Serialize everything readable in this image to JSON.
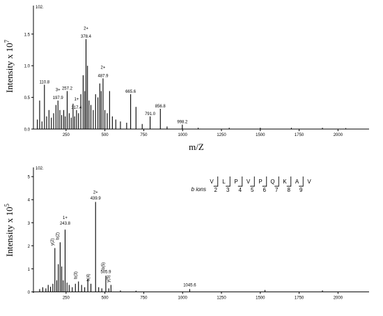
{
  "chart_data": [
    {
      "type": "bar",
      "title": "",
      "ylabel": "Intensity x 10",
      "ylabel_exp": "7",
      "xlabel": "m/Z",
      "corner_label": "102.",
      "xlim": [
        40,
        2200
      ],
      "ylim": [
        0,
        1.95
      ],
      "xticks": [
        250,
        500,
        750,
        1000,
        1250,
        1500,
        1750,
        2000
      ],
      "yticks": [
        0.0,
        0.5,
        1.0,
        1.5
      ],
      "ytick_labels": [
        "0.0",
        "0.5",
        "1.0",
        "1.5"
      ],
      "peaks": [
        {
          "mz": 65,
          "y": 0.15
        },
        {
          "mz": 80,
          "y": 0.45
        },
        {
          "mz": 95,
          "y": 0.12
        },
        {
          "mz": 110.8,
          "y": 0.7
        },
        {
          "mz": 125,
          "y": 0.2
        },
        {
          "mz": 140,
          "y": 0.3
        },
        {
          "mz": 155,
          "y": 0.18
        },
        {
          "mz": 170,
          "y": 0.25
        },
        {
          "mz": 185,
          "y": 0.38
        },
        {
          "mz": 197.9,
          "y": 0.45
        },
        {
          "mz": 210,
          "y": 0.3
        },
        {
          "mz": 222,
          "y": 0.22
        },
        {
          "mz": 235,
          "y": 0.3
        },
        {
          "mz": 245,
          "y": 0.2
        },
        {
          "mz": 257.2,
          "y": 0.6
        },
        {
          "mz": 270,
          "y": 0.25
        },
        {
          "mz": 283,
          "y": 0.18
        },
        {
          "mz": 295,
          "y": 0.4
        },
        {
          "mz": 305,
          "y": 0.2
        },
        {
          "mz": 317.4,
          "y": 0.3
        },
        {
          "mz": 330,
          "y": 0.25
        },
        {
          "mz": 345,
          "y": 0.55
        },
        {
          "mz": 360,
          "y": 0.85
        },
        {
          "mz": 370,
          "y": 0.6
        },
        {
          "mz": 378.4,
          "y": 1.42
        },
        {
          "mz": 388,
          "y": 1.0
        },
        {
          "mz": 398,
          "y": 0.45
        },
        {
          "mz": 410,
          "y": 0.38
        },
        {
          "mz": 425,
          "y": 0.3
        },
        {
          "mz": 440,
          "y": 0.55
        },
        {
          "mz": 455,
          "y": 0.5
        },
        {
          "mz": 467,
          "y": 0.72
        },
        {
          "mz": 476,
          "y": 0.6
        },
        {
          "mz": 487.9,
          "y": 0.8
        },
        {
          "mz": 500,
          "y": 0.3
        },
        {
          "mz": 515,
          "y": 0.25
        },
        {
          "mz": 530,
          "y": 0.6
        },
        {
          "mz": 548,
          "y": 0.2
        },
        {
          "mz": 570,
          "y": 0.15
        },
        {
          "mz": 600,
          "y": 0.12
        },
        {
          "mz": 640,
          "y": 0.1
        },
        {
          "mz": 665.6,
          "y": 0.55
        },
        {
          "mz": 700,
          "y": 0.35
        },
        {
          "mz": 740,
          "y": 0.08
        },
        {
          "mz": 791.0,
          "y": 0.2
        },
        {
          "mz": 856.8,
          "y": 0.32
        },
        {
          "mz": 900,
          "y": 0.04
        },
        {
          "mz": 998.2,
          "y": 0.07
        },
        {
          "mz": 1100,
          "y": 0.02
        },
        {
          "mz": 1300,
          "y": 0.02
        },
        {
          "mz": 1500,
          "y": 0.02
        },
        {
          "mz": 1700,
          "y": 0.02
        },
        {
          "mz": 1900,
          "y": 0.02
        },
        {
          "mz": 2050,
          "y": 0.015
        }
      ],
      "annotations": [
        {
          "text": "110.8",
          "mz": 110.8,
          "y": 0.7,
          "color": "#000000"
        },
        {
          "text": "3+",
          "mz": 197.9,
          "y": 0.58,
          "color": "#000000"
        },
        {
          "text": "197.9",
          "mz": 197.9,
          "y": 0.45,
          "color": "#000000"
        },
        {
          "text": "257.2",
          "mz": 257.2,
          "y": 0.6,
          "color": "#000000"
        },
        {
          "text": "1+",
          "mz": 317.4,
          "y": 0.43,
          "color": "#cc0000"
        },
        {
          "text": "317.4",
          "mz": 317.4,
          "y": 0.3,
          "color": "#cc0000"
        },
        {
          "text": "2+",
          "mz": 378.4,
          "y": 1.55,
          "color": "#000000"
        },
        {
          "text": "378.4",
          "mz": 378.4,
          "y": 1.42,
          "color": "#000000"
        },
        {
          "text": "2+",
          "mz": 487.9,
          "y": 0.93,
          "color": "#000000"
        },
        {
          "text": "487.9",
          "mz": 487.9,
          "y": 0.8,
          "color": "#000000"
        },
        {
          "text": "665.6",
          "mz": 665.6,
          "y": 0.55,
          "color": "#000000"
        },
        {
          "text": "791.0",
          "mz": 791.0,
          "y": 0.2,
          "color": "#000000"
        },
        {
          "text": "856.8",
          "mz": 856.8,
          "y": 0.32,
          "color": "#000000"
        },
        {
          "text": "998.2",
          "mz": 998.2,
          "y": 0.07,
          "color": "#000000"
        }
      ]
    },
    {
      "type": "bar",
      "title": "",
      "ylabel": "Intensity x 10",
      "ylabel_exp": "5",
      "xlabel": "",
      "corner_label": "102.",
      "xlim": [
        40,
        2200
      ],
      "ylim": [
        -0.05,
        5.4
      ],
      "xticks": [
        250,
        500,
        750,
        1000,
        1250,
        1500,
        1750,
        2000
      ],
      "yticks": [
        0,
        1,
        2,
        3,
        4,
        5
      ],
      "ytick_labels": [
        "0",
        "1",
        "2",
        "3",
        "4",
        "5"
      ],
      "peaks": [
        {
          "mz": 80,
          "y": 0.12
        },
        {
          "mz": 100,
          "y": 0.2
        },
        {
          "mz": 120,
          "y": 0.15
        },
        {
          "mz": 135,
          "y": 0.3
        },
        {
          "mz": 150,
          "y": 0.22
        },
        {
          "mz": 165,
          "y": 0.35
        },
        {
          "mz": 178,
          "y": 1.9
        },
        {
          "mz": 190,
          "y": 0.5
        },
        {
          "mz": 200,
          "y": 1.2
        },
        {
          "mz": 212,
          "y": 2.15
        },
        {
          "mz": 222,
          "y": 1.1
        },
        {
          "mz": 232,
          "y": 0.5
        },
        {
          "mz": 243.8,
          "y": 2.7
        },
        {
          "mz": 256,
          "y": 0.4
        },
        {
          "mz": 270,
          "y": 0.3
        },
        {
          "mz": 290,
          "y": 0.2
        },
        {
          "mz": 310,
          "y": 0.35
        },
        {
          "mz": 330,
          "y": 0.45
        },
        {
          "mz": 350,
          "y": 0.3
        },
        {
          "mz": 370,
          "y": 0.2
        },
        {
          "mz": 390,
          "y": 0.55
        },
        {
          "mz": 410,
          "y": 0.35
        },
        {
          "mz": 439.9,
          "y": 3.9
        },
        {
          "mz": 460,
          "y": 0.2
        },
        {
          "mz": 480,
          "y": 0.15
        },
        {
          "mz": 505.9,
          "y": 0.7
        },
        {
          "mz": 525,
          "y": 0.15
        },
        {
          "mz": 539,
          "y": 0.3
        },
        {
          "mz": 600,
          "y": 0.06
        },
        {
          "mz": 700,
          "y": 0.05
        },
        {
          "mz": 1045.6,
          "y": 0.12
        },
        {
          "mz": 1530,
          "y": 0.08
        },
        {
          "mz": 1900,
          "y": 0.06
        }
      ],
      "annotations": [
        {
          "text": "1+",
          "mz": 243.8,
          "y": 3.1,
          "color": "#000000"
        },
        {
          "text": "243.8",
          "mz": 243.8,
          "y": 2.85,
          "color": "#000000"
        },
        {
          "text": "2+",
          "mz": 439.9,
          "y": 4.2,
          "color": "#000000"
        },
        {
          "text": "439.9",
          "mz": 439.9,
          "y": 3.95,
          "color": "#000000"
        },
        {
          "text": "505.9",
          "mz": 505.9,
          "y": 0.75,
          "color": "#000000"
        },
        {
          "text": "1045.6",
          "mz": 1045.6,
          "y": 0.18,
          "color": "#000000"
        }
      ],
      "vertical_labels": [
        {
          "text": "y(2)",
          "mz": 178,
          "y": 1.95
        },
        {
          "text": "b(2)",
          "mz": 212,
          "y": 2.2
        },
        {
          "text": "b(3)",
          "mz": 330,
          "y": 0.5
        },
        {
          "text": "b(4)",
          "mz": 410,
          "y": 0.4
        },
        {
          "text": "b(5)",
          "mz": 505.9,
          "y": 0.9
        },
        {
          "text": "y(5)",
          "mz": 539,
          "y": 0.35
        }
      ],
      "sequence": {
        "label": "b ions",
        "residues": [
          "V",
          "L",
          "P",
          "V",
          "P",
          "Q",
          "K",
          "A",
          "V"
        ],
        "numbers": [
          "2",
          "3",
          "4",
          "5",
          "6",
          "7",
          "8",
          "9"
        ]
      }
    }
  ]
}
